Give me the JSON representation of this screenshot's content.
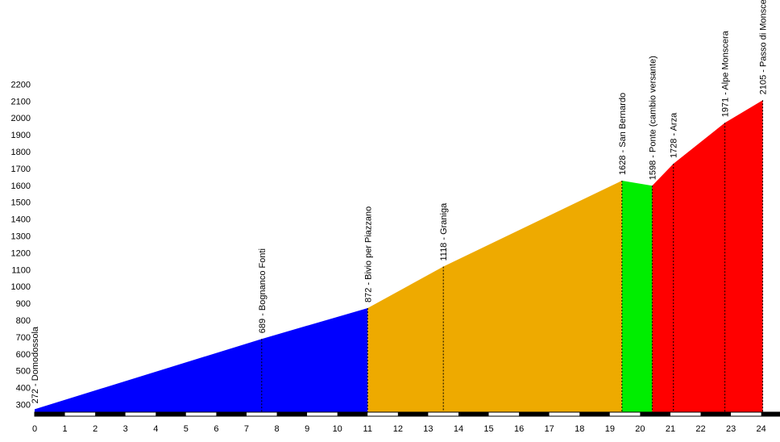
{
  "chart_data": {
    "type": "area",
    "title": "",
    "xlabel": "",
    "ylabel": "",
    "xlim": [
      0,
      24.6
    ],
    "ylim": [
      230,
      2200
    ],
    "grid": false,
    "legend": "none",
    "x_ticks": [
      0,
      1,
      2,
      3,
      4,
      5,
      6,
      7,
      8,
      9,
      10,
      11,
      12,
      13,
      14,
      15,
      16,
      17,
      18,
      19,
      20,
      21,
      22,
      23,
      24
    ],
    "y_ticks": [
      300,
      400,
      500,
      600,
      700,
      800,
      900,
      1000,
      1100,
      1200,
      1300,
      1400,
      1500,
      1600,
      1700,
      1800,
      1900,
      2000,
      2100,
      2200
    ],
    "profile": {
      "x": [
        0,
        7.5,
        11,
        13.5,
        19.4,
        20.4,
        21.1,
        22.8,
        24.05
      ],
      "y": [
        272,
        689,
        872,
        1118,
        1628,
        1598,
        1728,
        1971,
        2105
      ]
    },
    "segments": [
      {
        "x_start": 0,
        "x_end": 11,
        "color": "#0000ff"
      },
      {
        "x_start": 11,
        "x_end": 19.4,
        "color": "#eeaa00"
      },
      {
        "x_start": 19.4,
        "x_end": 20.4,
        "color": "#00ee00"
      },
      {
        "x_start": 20.4,
        "x_end": 24.05,
        "color": "#ff0000"
      }
    ],
    "points": [
      {
        "x": 0,
        "y": 272,
        "label": "272 - Domodossola"
      },
      {
        "x": 7.5,
        "y": 689,
        "label": "689 - Bognanco Fonti"
      },
      {
        "x": 11,
        "y": 872,
        "label": "872 - Bivio per Piazzano"
      },
      {
        "x": 13.5,
        "y": 1118,
        "label": "1118 - Graniga"
      },
      {
        "x": 19.4,
        "y": 1628,
        "label": "1628 - San Bernardo"
      },
      {
        "x": 20.4,
        "y": 1598,
        "label": "1598 - Ponte (cambio versante)"
      },
      {
        "x": 21.1,
        "y": 1728,
        "label": "1728 - Arza"
      },
      {
        "x": 22.8,
        "y": 1971,
        "label": "1971 - Alpe Monscera"
      },
      {
        "x": 24.05,
        "y": 2105,
        "label": "2105 - Passo di Monscera"
      }
    ],
    "colors": {
      "axis_bar_dark": "#000000",
      "axis_bar_light": "#ffffff",
      "guide_line": "#000000"
    }
  }
}
